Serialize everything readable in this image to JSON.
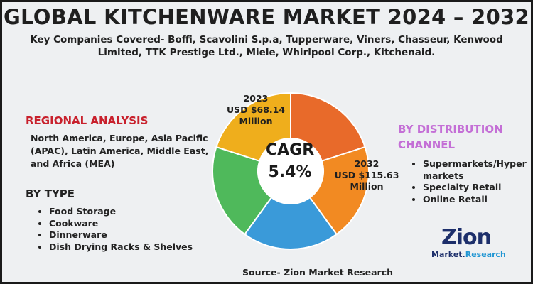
{
  "title": "GLOBAL KITCHENWARE MARKET 2024 – 2032",
  "subtitle": "Key Companies Covered- Boffi, Scavolini S.p.a, Tupperware, Viners, Chasseur, Kenwood Limited, TTK Prestige Ltd., Miele, Whirlpool Corp., Kitchenaid.",
  "regional": {
    "heading": "REGIONAL ANALYSIS",
    "body": "North America, Europe, Asia Pacific (APAC), Latin America, Middle East, and Africa (MEA)"
  },
  "by_type": {
    "heading": "BY TYPE",
    "items": [
      "Food Storage",
      "Cookware",
      "Dinnerware",
      "Dish Drying Racks & Shelves"
    ]
  },
  "distribution": {
    "heading_line1": "BY DISTRIBUTION",
    "heading_line2": "CHANNEL",
    "items": [
      "Supermarkets/Hyper markets",
      "Specialty Retail",
      "Online Retail"
    ]
  },
  "source": "Source- Zion Market Research",
  "logo": {
    "word": "Zion",
    "sub_a": "Market.",
    "sub_b": "Research"
  },
  "colors": {
    "title": "#1f1f1f",
    "regional_heading": "#c8202c",
    "distribution_heading": "#c46fd6",
    "background": "#eef0f2"
  },
  "chart_data": {
    "type": "pie",
    "style": "donut",
    "slices": [
      {
        "value": 20,
        "color": "#e86a2a"
      },
      {
        "value": 20,
        "color": "#f28a22"
      },
      {
        "value": 20,
        "color": "#3a9ad9"
      },
      {
        "value": 20,
        "color": "#4fb95b"
      },
      {
        "value": 20,
        "color": "#efae1c"
      }
    ],
    "center_label_line1": "CAGR",
    "center_label_line2": "5.4%",
    "annotations": [
      {
        "line1": "2023",
        "line2": "USD $68.14",
        "line3": "Million"
      },
      {
        "line1": "2032",
        "line2": "USD $115.63",
        "line3": "Million"
      }
    ]
  }
}
